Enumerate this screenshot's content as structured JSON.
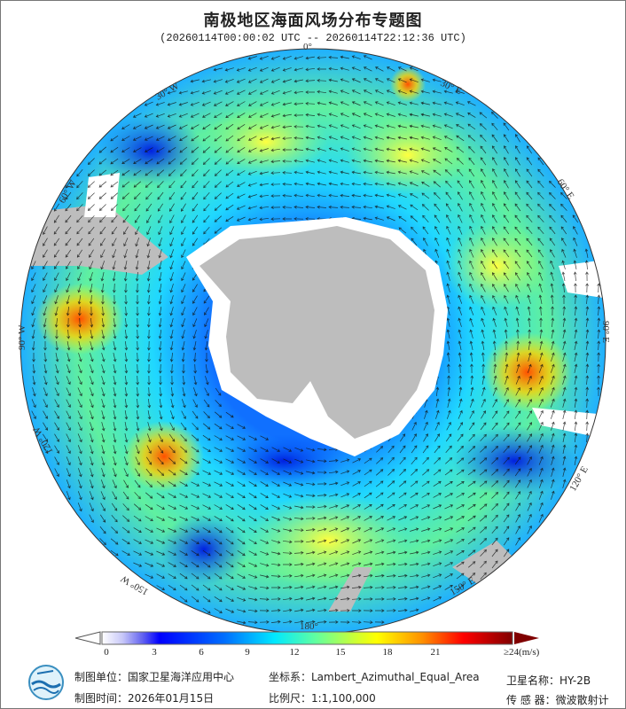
{
  "title": "南极地区海面风场分布专题图",
  "subtitle": "(20260114T00:00:02 UTC -- 20260114T22:12:36 UTC)",
  "map": {
    "projection_label": "Lambert_Azimuthal_Equal_Area",
    "longitude_labels": [
      "0°",
      "30° E",
      "60° E",
      "90° E",
      "120° E",
      "150° E",
      "180°",
      "150° W",
      "120° W",
      "90° W",
      "60° W",
      "30° W"
    ],
    "colors": {
      "land": "#bdbdbd",
      "ice": "#ffffff",
      "arrow": "#111111"
    }
  },
  "colorbar": {
    "ticks": [
      "0",
      "3",
      "6",
      "9",
      "12",
      "15",
      "18",
      "21"
    ],
    "max_label": "≥24",
    "unit": "(m/s)",
    "range": [
      0,
      24
    ],
    "stops": [
      "#ffffff",
      "#c8c8f8",
      "#8080f0",
      "#0000ff",
      "#0050ff",
      "#00a0ff",
      "#00e8ff",
      "#40ffc0",
      "#a0ff60",
      "#ffff00",
      "#ffc000",
      "#ff7000",
      "#ff1000",
      "#c00000",
      "#800000"
    ]
  },
  "footer": {
    "org_label": "制图单位：国家卫星海洋应用中心",
    "date_label": "制图时间：2026年01月15日",
    "crs_label": "坐标系：Lambert_Azimuthal_Equal_Area",
    "scale_label": "比例尺：1:1,100,000",
    "satellite_label": "卫星名称：HY-2B",
    "sensor_label": "传 感 器：微波散射计"
  }
}
